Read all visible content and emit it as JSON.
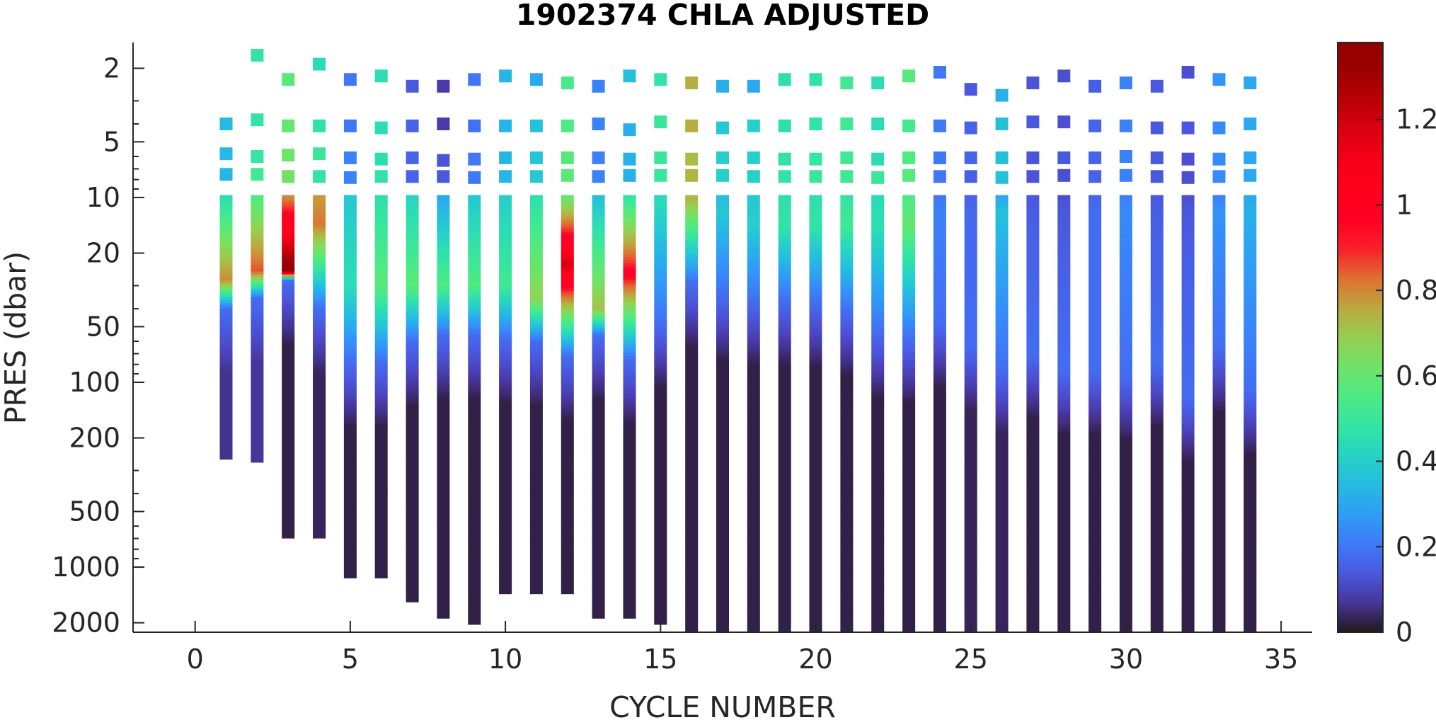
{
  "chart_data": {
    "type": "heatmap",
    "title": "1902374  CHLA ADJUSTED",
    "xlabel": "CYCLE NUMBER",
    "ylabel": "PRES (dbar)",
    "xlim": [
      -2,
      36
    ],
    "ylim": [
      1.45,
      2250
    ],
    "y_scale": "log",
    "y_reversed": true,
    "x_ticks": [
      0,
      5,
      10,
      15,
      20,
      25,
      30,
      35
    ],
    "x_tick_labels": [
      "0",
      "5",
      "10",
      "15",
      "20",
      "25",
      "30",
      "35"
    ],
    "y_ticks": [
      2,
      5,
      10,
      20,
      50,
      100,
      200,
      500,
      1000,
      2000
    ],
    "y_tick_labels": [
      "2",
      "5",
      "10",
      "20",
      "50",
      "100",
      "200",
      "500",
      "1000",
      "2000"
    ],
    "colorbar": {
      "colormap": "turbo",
      "range": [
        0,
        1.38
      ],
      "ticks": [
        0,
        0.2,
        0.4,
        0.6,
        0.8,
        1,
        1.2
      ],
      "tick_labels": [
        "0",
        "0.2",
        "0.4",
        "0.6",
        "0.8",
        "1",
        "1.2"
      ]
    },
    "surface_samples": {
      "columns": [
        "cycle",
        "pres_dbar",
        "chla"
      ],
      "points": [
        [
          1,
          4.0,
          0.34
        ],
        [
          1,
          5.8,
          0.34
        ],
        [
          1,
          7.5,
          0.33
        ],
        [
          2,
          1.7,
          0.48
        ],
        [
          2,
          3.8,
          0.48
        ],
        [
          2,
          6.0,
          0.49
        ],
        [
          2,
          7.5,
          0.52
        ],
        [
          3,
          2.3,
          0.58
        ],
        [
          3,
          4.1,
          0.6
        ],
        [
          3,
          5.9,
          0.62
        ],
        [
          3,
          7.7,
          0.63
        ],
        [
          4,
          1.9,
          0.44
        ],
        [
          4,
          4.1,
          0.47
        ],
        [
          4,
          5.8,
          0.5
        ],
        [
          4,
          7.7,
          0.48
        ],
        [
          5,
          2.3,
          0.2
        ],
        [
          5,
          4.1,
          0.2
        ],
        [
          5,
          6.1,
          0.22
        ],
        [
          5,
          7.8,
          0.22
        ],
        [
          6,
          2.2,
          0.45
        ],
        [
          6,
          4.2,
          0.45
        ],
        [
          6,
          6.2,
          0.46
        ],
        [
          6,
          7.7,
          0.47
        ],
        [
          7,
          2.5,
          0.14
        ],
        [
          7,
          4.1,
          0.16
        ],
        [
          7,
          6.1,
          0.16
        ],
        [
          7,
          7.7,
          0.16
        ],
        [
          8,
          2.5,
          0.08
        ],
        [
          8,
          4.0,
          0.08
        ],
        [
          8,
          6.3,
          0.13
        ],
        [
          8,
          7.7,
          0.14
        ],
        [
          9,
          2.3,
          0.2
        ],
        [
          9,
          4.1,
          0.19
        ],
        [
          9,
          6.2,
          0.2
        ],
        [
          9,
          7.8,
          0.2
        ],
        [
          10,
          2.2,
          0.33
        ],
        [
          10,
          4.1,
          0.33
        ],
        [
          10,
          6.1,
          0.33
        ],
        [
          10,
          7.7,
          0.33
        ],
        [
          11,
          2.3,
          0.3
        ],
        [
          11,
          4.1,
          0.36
        ],
        [
          11,
          6.1,
          0.37
        ],
        [
          11,
          7.7,
          0.38
        ],
        [
          12,
          2.4,
          0.54
        ],
        [
          12,
          4.1,
          0.55
        ],
        [
          12,
          6.1,
          0.57
        ],
        [
          12,
          7.6,
          0.58
        ],
        [
          13,
          2.5,
          0.22
        ],
        [
          13,
          4.0,
          0.22
        ],
        [
          13,
          6.1,
          0.22
        ],
        [
          13,
          7.7,
          0.22
        ],
        [
          14,
          2.2,
          0.36
        ],
        [
          14,
          4.3,
          0.32
        ],
        [
          14,
          6.2,
          0.32
        ],
        [
          14,
          7.6,
          0.32
        ],
        [
          15,
          2.3,
          0.48
        ],
        [
          15,
          3.9,
          0.5
        ],
        [
          15,
          6.1,
          0.5
        ],
        [
          15,
          7.6,
          0.5
        ],
        [
          16,
          2.4,
          0.75
        ],
        [
          16,
          4.1,
          0.75
        ],
        [
          16,
          6.2,
          0.73
        ],
        [
          16,
          7.6,
          0.74
        ],
        [
          17,
          2.5,
          0.32
        ],
        [
          17,
          4.2,
          0.38
        ],
        [
          17,
          6.1,
          0.4
        ],
        [
          17,
          7.6,
          0.4
        ],
        [
          18,
          2.5,
          0.3
        ],
        [
          18,
          4.1,
          0.4
        ],
        [
          18,
          6.1,
          0.4
        ],
        [
          18,
          7.7,
          0.4
        ],
        [
          19,
          2.3,
          0.46
        ],
        [
          19,
          4.1,
          0.46
        ],
        [
          19,
          6.2,
          0.48
        ],
        [
          19,
          7.7,
          0.48
        ],
        [
          20,
          2.3,
          0.47
        ],
        [
          20,
          4.0,
          0.48
        ],
        [
          20,
          6.2,
          0.49
        ],
        [
          20,
          7.7,
          0.5
        ],
        [
          21,
          2.4,
          0.52
        ],
        [
          21,
          4.0,
          0.52
        ],
        [
          21,
          6.1,
          0.52
        ],
        [
          21,
          7.7,
          0.52
        ],
        [
          22,
          2.4,
          0.45
        ],
        [
          22,
          4.0,
          0.45
        ],
        [
          22,
          6.2,
          0.45
        ],
        [
          22,
          7.8,
          0.5
        ],
        [
          23,
          2.2,
          0.58
        ],
        [
          23,
          4.1,
          0.53
        ],
        [
          23,
          6.1,
          0.56
        ],
        [
          23,
          7.6,
          0.58
        ],
        [
          24,
          2.1,
          0.2
        ],
        [
          24,
          4.1,
          0.21
        ],
        [
          24,
          6.1,
          0.2
        ],
        [
          24,
          7.7,
          0.2
        ],
        [
          25,
          2.6,
          0.14
        ],
        [
          25,
          4.2,
          0.16
        ],
        [
          25,
          6.1,
          0.16
        ],
        [
          25,
          7.7,
          0.15
        ],
        [
          26,
          2.8,
          0.32
        ],
        [
          26,
          4.0,
          0.36
        ],
        [
          26,
          6.1,
          0.36
        ],
        [
          26,
          7.8,
          0.36
        ],
        [
          27,
          2.4,
          0.13
        ],
        [
          27,
          3.9,
          0.14
        ],
        [
          27,
          6.1,
          0.13
        ],
        [
          27,
          7.7,
          0.13
        ],
        [
          28,
          2.2,
          0.12
        ],
        [
          28,
          3.9,
          0.12
        ],
        [
          28,
          6.1,
          0.14
        ],
        [
          28,
          7.6,
          0.12
        ],
        [
          29,
          2.5,
          0.15
        ],
        [
          29,
          4.1,
          0.16
        ],
        [
          29,
          6.1,
          0.16
        ],
        [
          29,
          7.7,
          0.16
        ],
        [
          30,
          2.4,
          0.22
        ],
        [
          30,
          4.1,
          0.22
        ],
        [
          30,
          6.0,
          0.22
        ],
        [
          30,
          7.6,
          0.22
        ],
        [
          31,
          2.5,
          0.14
        ],
        [
          31,
          4.2,
          0.14
        ],
        [
          31,
          6.1,
          0.14
        ],
        [
          31,
          7.7,
          0.14
        ],
        [
          32,
          2.1,
          0.12
        ],
        [
          32,
          4.2,
          0.14
        ],
        [
          32,
          6.2,
          0.12
        ],
        [
          32,
          7.8,
          0.12
        ],
        [
          33,
          2.3,
          0.26
        ],
        [
          33,
          4.2,
          0.24
        ],
        [
          33,
          6.2,
          0.24
        ],
        [
          33,
          7.7,
          0.24
        ],
        [
          34,
          2.4,
          0.3
        ],
        [
          34,
          4.0,
          0.3
        ],
        [
          34,
          6.1,
          0.3
        ],
        [
          34,
          7.6,
          0.3
        ]
      ]
    },
    "profiles": {
      "columns": [
        "cycle",
        "max_pres_dbar",
        "upper_chla_10_to_20",
        "max_chla",
        "pres_of_max_dbar",
        "mixed_layer_bottom_dbar",
        "deep_chla"
      ],
      "rows": [
        [
          1,
          262,
          0.45,
          0.8,
          28,
          40,
          0.06
        ],
        [
          2,
          272,
          0.56,
          0.86,
          25,
          35,
          0.07
        ],
        [
          3,
          700,
          0.8,
          1.38,
          25,
          28,
          0.02
        ],
        [
          4,
          700,
          0.78,
          0.82,
          14,
          40,
          0.03
        ],
        [
          5,
          1150,
          0.38,
          0.45,
          30,
          78,
          0.02
        ],
        [
          6,
          1150,
          0.46,
          0.58,
          30,
          78,
          0.02
        ],
        [
          7,
          1550,
          0.42,
          0.58,
          30,
          60,
          0.02
        ],
        [
          8,
          1900,
          0.3,
          0.56,
          30,
          55,
          0.02
        ],
        [
          9,
          2050,
          0.38,
          0.56,
          30,
          55,
          0.02
        ],
        [
          10,
          1400,
          0.4,
          0.52,
          30,
          58,
          0.02
        ],
        [
          11,
          1400,
          0.46,
          0.68,
          35,
          60,
          0.02
        ],
        [
          12,
          1400,
          0.6,
          1.18,
          23,
          72,
          0.02
        ],
        [
          13,
          1900,
          0.36,
          0.72,
          40,
          56,
          0.02
        ],
        [
          14,
          1900,
          0.48,
          0.95,
          26,
          75,
          0.02
        ],
        [
          15,
          2050,
          0.42,
          0.45,
          10,
          48,
          0.02
        ],
        [
          16,
          2250,
          0.72,
          0.75,
          10,
          29,
          0.02
        ],
        [
          17,
          2250,
          0.35,
          0.38,
          12,
          34,
          0.02
        ],
        [
          18,
          2250,
          0.38,
          0.4,
          14,
          36,
          0.02
        ],
        [
          19,
          2250,
          0.46,
          0.48,
          14,
          36,
          0.02
        ],
        [
          20,
          2250,
          0.46,
          0.48,
          14,
          37,
          0.02
        ],
        [
          21,
          2250,
          0.48,
          0.52,
          14,
          41,
          0.02
        ],
        [
          22,
          2250,
          0.44,
          0.46,
          14,
          54,
          0.02
        ],
        [
          23,
          2250,
          0.55,
          0.6,
          14,
          58,
          0.02
        ],
        [
          24,
          2250,
          0.2,
          0.22,
          12,
          48,
          0.02
        ],
        [
          25,
          2250,
          0.16,
          0.17,
          12,
          63,
          0.03
        ],
        [
          26,
          2250,
          0.3,
          0.36,
          12,
          84,
          0.03
        ],
        [
          27,
          2250,
          0.14,
          0.15,
          12,
          70,
          0.02
        ],
        [
          28,
          2250,
          0.12,
          0.14,
          12,
          86,
          0.02
        ],
        [
          29,
          2250,
          0.16,
          0.18,
          12,
          86,
          0.02
        ],
        [
          30,
          2250,
          0.22,
          0.24,
          12,
          92,
          0.02
        ],
        [
          31,
          2250,
          0.14,
          0.15,
          12,
          78,
          0.02
        ],
        [
          32,
          2250,
          0.12,
          0.14,
          12,
          120,
          0.02
        ],
        [
          33,
          2250,
          0.22,
          0.26,
          12,
          65,
          0.02
        ],
        [
          34,
          2250,
          0.3,
          0.32,
          12,
          110,
          0.02
        ]
      ]
    }
  }
}
